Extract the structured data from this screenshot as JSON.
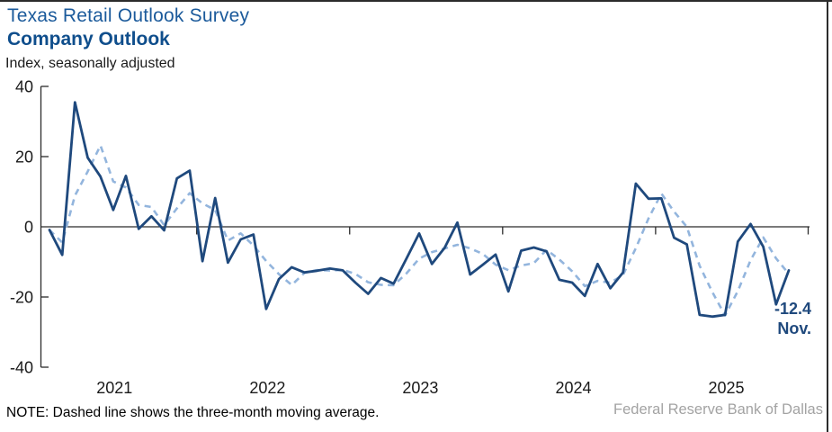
{
  "header": {
    "title": "Texas Retail Outlook Survey",
    "subtitle": "Company Outlook",
    "units_label": "Index, seasonally adjusted"
  },
  "footer": {
    "note": "NOTE: Dashed line shows the three-month moving average.",
    "source": "Federal Reserve Bank of Dallas"
  },
  "annotation": {
    "value_label": "-12.4",
    "month_label": "Nov."
  },
  "colors": {
    "monthly_line": "#1f497d",
    "moving_average_line": "#93b5dd",
    "axis": "#2b2b2b",
    "title_blue": "#1b5a9b",
    "subtitle_blue": "#0f4e8c",
    "source_gray": "#a3a3a3"
  },
  "chart_data": {
    "type": "line",
    "title": "Company Outlook",
    "subtitle": "Texas Retail Outlook Survey",
    "ylabel": "Index, seasonally adjusted",
    "ylim": [
      -40,
      40
    ],
    "yticks": [
      40,
      20,
      0,
      -20,
      -40
    ],
    "x_year_labels": [
      "2021",
      "2022",
      "2023",
      "2024",
      "2025"
    ],
    "start_month": "Jan 2021",
    "end_month": "Nov 2025",
    "grid": false,
    "legend": "none (dashed explained in note)",
    "series": [
      {
        "name": "Company outlook index (monthly)",
        "style": "solid",
        "values": [
          -0.9,
          -8.0,
          35.5,
          19.7,
          14.3,
          4.8,
          14.5,
          -0.6,
          3.0,
          -1.0,
          13.8,
          16.0,
          -9.8,
          8.2,
          -10.2,
          -3.6,
          -2.2,
          -23.4,
          -14.9,
          -11.5,
          -13.0,
          -12.5,
          -11.9,
          -12.4,
          -15.9,
          -19.1,
          -14.6,
          -16.2,
          -9.1,
          -1.9,
          -10.6,
          -6.0,
          1.2,
          -13.6,
          -10.8,
          -7.9,
          -18.4,
          -6.8,
          -5.9,
          -7.0,
          -15.1,
          -15.9,
          -19.7,
          -10.6,
          -17.5,
          -13.0,
          12.3,
          8.0,
          8.1,
          -3.1,
          -5.0,
          -25.1,
          -25.6,
          -25.1,
          -4.2,
          0.8,
          -5.7,
          -22.1,
          -12.4
        ]
      },
      {
        "name": "Three-month moving average",
        "style": "dashed",
        "derived": "3-month trailing moving average of the monthly series"
      }
    ],
    "last_point": {
      "month": "Nov.",
      "value": -12.4
    }
  }
}
